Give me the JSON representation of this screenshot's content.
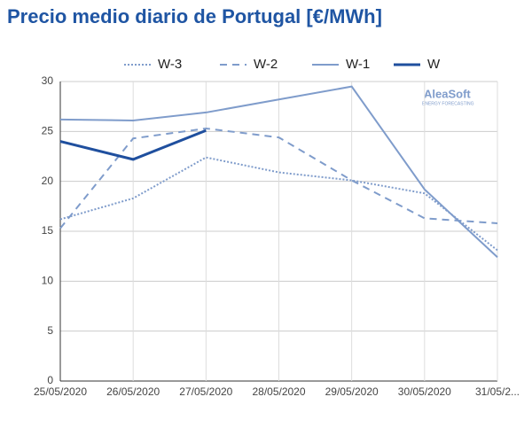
{
  "chart_data": {
    "type": "line",
    "title": "Precio medio diario de Portugal [€/MWh]",
    "logo": {
      "name": "AleaSoft",
      "tagline": "ENERGY FORECASTING"
    },
    "categories": [
      "25/05/2020",
      "26/05/2020",
      "27/05/2020",
      "28/05/2020",
      "29/05/2020",
      "30/05/2020",
      "31/05/2..."
    ],
    "series": [
      {
        "name": "W-3",
        "color": "#7f9ccb",
        "dash": "dotted",
        "values": [
          16.2,
          18.3,
          22.4,
          20.9,
          20.1,
          18.8,
          13.1
        ]
      },
      {
        "name": "W-2",
        "color": "#7f9ccb",
        "dash": "dashed",
        "values": [
          15.3,
          24.3,
          25.3,
          24.4,
          20.1,
          16.3,
          15.8
        ]
      },
      {
        "name": "W-1",
        "color": "#7f9ccb",
        "dash": "solid",
        "values": [
          26.2,
          26.1,
          26.9,
          28.2,
          29.5,
          19.2,
          12.4
        ]
      },
      {
        "name": "W",
        "color": "#1f4f9e",
        "dash": "solid",
        "values": [
          24.0,
          22.2,
          25.1,
          null,
          null,
          null,
          null
        ]
      }
    ],
    "ylim": [
      0,
      30
    ],
    "yticks": [
      0,
      5,
      10,
      15,
      20,
      25,
      30
    ],
    "grid": true
  }
}
